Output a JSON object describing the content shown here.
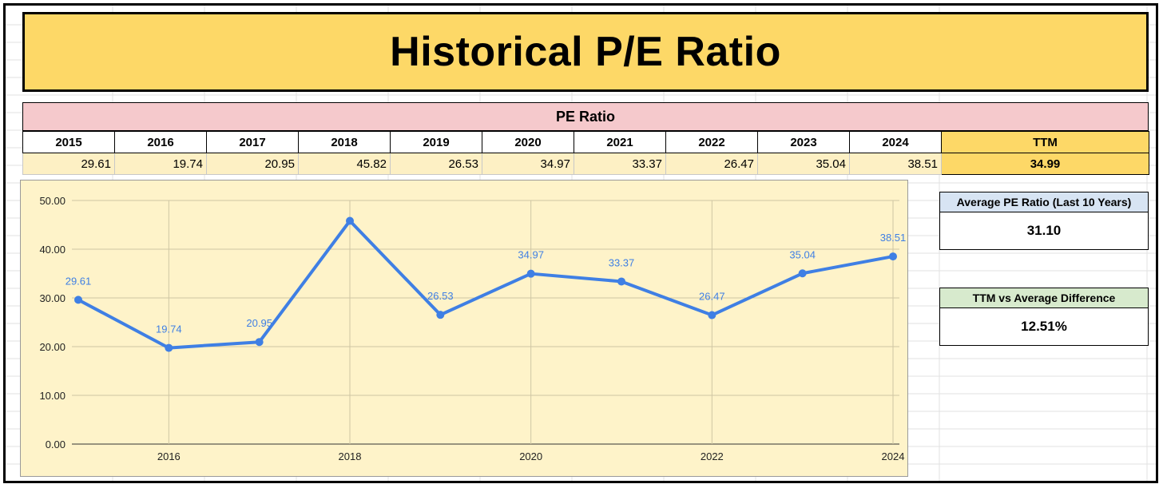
{
  "title": "Historical P/E Ratio",
  "table": {
    "header": "PE Ratio",
    "years": [
      "2015",
      "2016",
      "2017",
      "2018",
      "2019",
      "2020",
      "2021",
      "2022",
      "2023",
      "2024"
    ],
    "values": [
      "29.61",
      "19.74",
      "20.95",
      "45.82",
      "26.53",
      "34.97",
      "33.37",
      "26.47",
      "35.04",
      "38.51"
    ],
    "ttm_label": "TTM",
    "ttm_value": "34.99"
  },
  "stats": {
    "average_label": "Average PE Ratio (Last 10 Years)",
    "average_value": "31.10",
    "difference_label": "TTM vs Average Difference",
    "difference_value": "12.51%"
  },
  "colors": {
    "title_bg": "#fdd867",
    "header_bg": "#f5c9cc",
    "chart_bg": "#fef3c9",
    "line": "#3f7fe4",
    "avg_label_bg": "#d7e4f3",
    "diff_label_bg": "#d7eacd"
  },
  "chart_data": {
    "type": "line",
    "x": [
      2015,
      2016,
      2017,
      2018,
      2019,
      2020,
      2021,
      2022,
      2023,
      2024
    ],
    "series": [
      {
        "values": [
          29.61,
          19.74,
          20.95,
          45.82,
          26.53,
          34.97,
          33.37,
          26.47,
          35.04,
          38.51
        ]
      }
    ],
    "data_labels": [
      "29.61",
      "19.74",
      "20.95",
      "",
      "26.53",
      "34.97",
      "33.37",
      "26.47",
      "35.04",
      "38.51"
    ],
    "x_ticks": [
      "2016",
      "2018",
      "2020",
      "2022",
      "2024"
    ],
    "y_ticks": [
      "0.00",
      "10.00",
      "20.00",
      "30.00",
      "40.00",
      "50.00"
    ],
    "ylim": [
      0,
      50
    ],
    "grid": true,
    "title": "",
    "xlabel": "",
    "ylabel": ""
  }
}
